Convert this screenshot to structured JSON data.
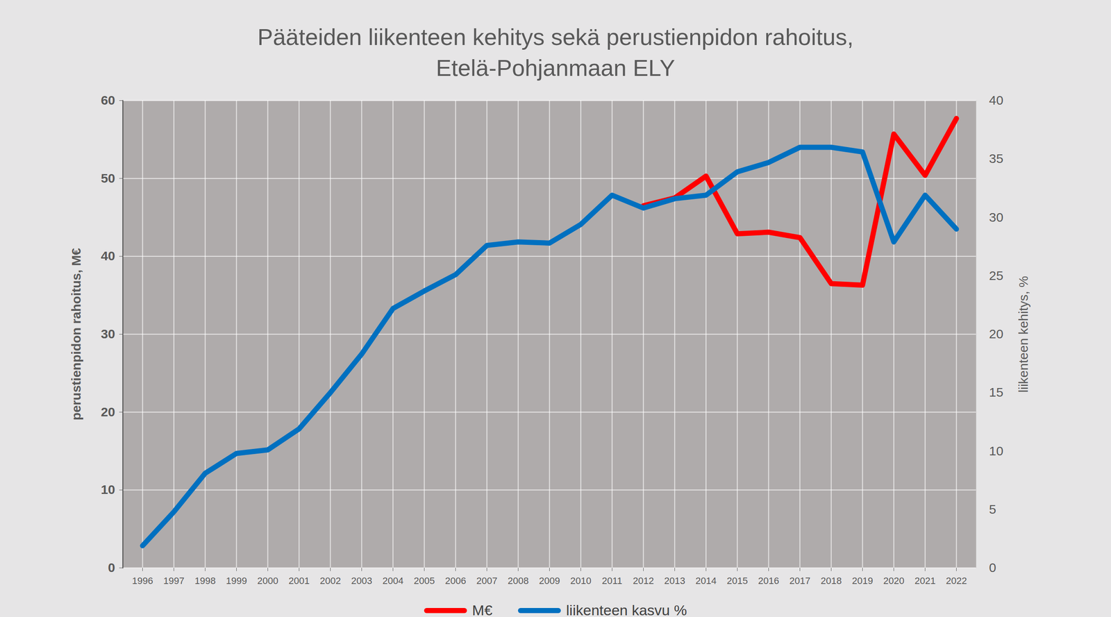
{
  "chart_data": {
    "type": "line",
    "title": [
      "Pääteiden liikenteen kehitys sekä perustienpidon rahoitus,",
      "Etelä-Pohjanmaan ELY"
    ],
    "y_label": "perustienpidon rahoitus, M€",
    "y2_label": "liikenteen kehitys, %",
    "categories": [
      "1996",
      "1997",
      "1998",
      "1999",
      "2000",
      "2001",
      "2002",
      "2003",
      "2004",
      "2005",
      "2006",
      "2007",
      "2008",
      "2009",
      "2010",
      "2011",
      "2012",
      "2013",
      "2014",
      "2015",
      "2016",
      "2017",
      "2018",
      "2019",
      "2020",
      "2021",
      "2022"
    ],
    "series": [
      {
        "name": "M€",
        "color": "#ff0000",
        "values": [
          null,
          null,
          null,
          null,
          null,
          null,
          null,
          null,
          null,
          null,
          null,
          null,
          null,
          null,
          null,
          null,
          46.5,
          47.5,
          50.3,
          42.9,
          43.1,
          42.4,
          36.5,
          36.3,
          55.7,
          50.4,
          57.7
        ]
      },
      {
        "name": "liikenteen kasvu %",
        "color": "#0070c0",
        "axis": "y2",
        "values": [
          1.9,
          4.8,
          8.1,
          9.8,
          10.1,
          11.9,
          15.0,
          18.3,
          22.2,
          23.7,
          25.1,
          27.6,
          27.9,
          27.8,
          29.4,
          31.9,
          30.8,
          31.6,
          31.9,
          33.9,
          34.7,
          36.0,
          36.0,
          35.6,
          27.9,
          31.9,
          29.0
        ]
      }
    ],
    "ylim": [
      0,
      60
    ],
    "yticks": [
      0,
      10,
      20,
      30,
      40,
      50,
      60
    ],
    "y2lim": [
      0,
      40
    ],
    "y2ticks": [
      0,
      5,
      10,
      15,
      20,
      25,
      30,
      35,
      40
    ],
    "grid": true,
    "legend": "bottom"
  }
}
